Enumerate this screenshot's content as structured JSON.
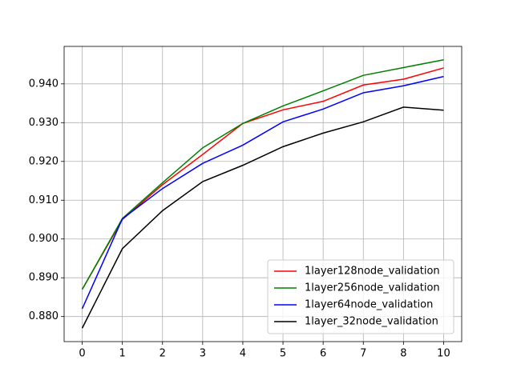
{
  "chart_data": {
    "type": "line",
    "categories": [
      "0",
      "1",
      "2",
      "3",
      "4",
      "5",
      "6",
      "7",
      "8",
      "10"
    ],
    "xlim": [
      -0.45,
      9.45
    ],
    "ylim": [
      0.87354,
      0.94966
    ],
    "yticks": [
      {
        "value": 0.88,
        "label": "0.880"
      },
      {
        "value": 0.89,
        "label": "0.890"
      },
      {
        "value": 0.9,
        "label": "0.900"
      },
      {
        "value": 0.91,
        "label": "0.910"
      },
      {
        "value": 0.92,
        "label": "0.920"
      },
      {
        "value": 0.93,
        "label": "0.930"
      },
      {
        "value": 0.94,
        "label": "0.940"
      }
    ],
    "grid": true,
    "legend": "lower right",
    "series": [
      {
        "name": "1layer128node_validation",
        "color": "#ff0000",
        "values": [
          0.887,
          0.905,
          0.914,
          0.9218,
          0.9298,
          0.9333,
          0.9355,
          0.9397,
          0.9412,
          0.9441
        ]
      },
      {
        "name": "1layer256node_validation",
        "color": "#008000",
        "values": [
          0.887,
          0.9053,
          0.9145,
          0.9235,
          0.9298,
          0.9343,
          0.9382,
          0.9422,
          0.9442,
          0.9462
        ]
      },
      {
        "name": "1layer64node_validation",
        "color": "#0000ff",
        "values": [
          0.882,
          0.9052,
          0.913,
          0.9195,
          0.9242,
          0.9302,
          0.9335,
          0.9377,
          0.9395,
          0.9419
        ]
      },
      {
        "name": "1layer_32node_validation",
        "color": "#000000",
        "values": [
          0.877,
          0.8975,
          0.9073,
          0.9148,
          0.919,
          0.9238,
          0.9273,
          0.9302,
          0.934,
          0.9332
        ]
      }
    ]
  }
}
